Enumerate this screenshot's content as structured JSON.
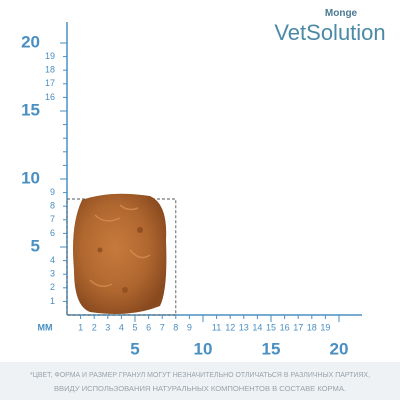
{
  "brand": {
    "name": "Monge",
    "product": "VetSolution"
  },
  "ruler": {
    "unit": "MM",
    "y_small_labels": [
      19,
      18,
      17,
      16,
      9,
      8,
      7,
      6,
      4,
      3,
      2,
      1
    ],
    "y_big_labels": [
      20,
      15,
      10,
      5
    ],
    "x_small_labels": [
      1,
      2,
      3,
      4,
      5,
      6,
      7,
      8,
      9,
      11,
      12,
      13,
      14,
      15,
      16,
      17,
      18,
      19
    ],
    "x_big_labels": [
      5,
      10,
      15,
      20
    ]
  },
  "footnote": [
    "*ЦВЕТ, ФОРМА И РАЗМЕР ГРАНУЛ МОГУТ НЕЗНАЧИТЕЛЬНО ОТЛИЧАТЬСЯ В РАЗЛИЧНЫХ ПАРТИЯХ,",
    "ВВИДУ ИСПОЛЬЗОВАНИЯ НАТУРАЛЬНЫХ КОМПОНЕНТОВ В СОСТАВЕ КОРМА."
  ]
}
